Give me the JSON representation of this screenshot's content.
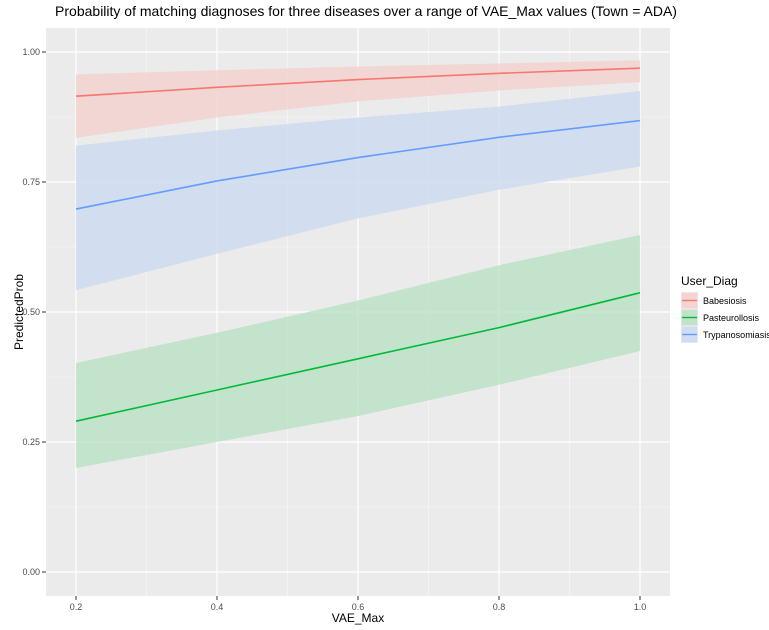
{
  "chart_data": {
    "type": "line",
    "title": "Probability of matching diagnoses for three diseases over a range of VAE_Max values (Town = ADA)",
    "xlabel": "VAE_Max",
    "ylabel": "PredictedProb",
    "xlim": [
      0.2,
      1.0
    ],
    "ylim": [
      0.0,
      1.0
    ],
    "x_ticks": [
      0.2,
      0.4,
      0.6,
      0.8,
      1.0
    ],
    "x_tick_labels": [
      "0.2",
      "0.4",
      "0.6",
      "0.8",
      "1.0"
    ],
    "y_ticks": [
      0.0,
      0.25,
      0.5,
      0.75,
      1.0
    ],
    "y_tick_labels": [
      "0.00",
      "0.25",
      "0.50",
      "0.75",
      "1.00"
    ],
    "grid": true,
    "background_color": "#ebebeb",
    "grid_color": "#ffffff",
    "legend": {
      "title": "User_Diag",
      "placement": "right"
    },
    "x": [
      0.2,
      0.4,
      0.6,
      0.8,
      1.0
    ],
    "series": [
      {
        "name": "Babesiosis",
        "color": "#f8766d",
        "fill": "#f4cfcc",
        "values": [
          0.915,
          0.932,
          0.947,
          0.959,
          0.969
        ],
        "lower": [
          0.835,
          0.874,
          0.905,
          0.926,
          0.942
        ],
        "upper": [
          0.957,
          0.965,
          0.972,
          0.978,
          0.984
        ]
      },
      {
        "name": "Pasteurollosis",
        "color": "#00ba38",
        "fill": "#b8e0c3",
        "values": [
          0.29,
          0.35,
          0.41,
          0.47,
          0.537
        ],
        "lower": [
          0.2,
          0.25,
          0.3,
          0.36,
          0.425
        ],
        "upper": [
          0.402,
          0.46,
          0.522,
          0.59,
          0.648
        ]
      },
      {
        "name": "Trypanosomiasis",
        "color": "#619cff",
        "fill": "#cad8f0",
        "values": [
          0.698,
          0.752,
          0.797,
          0.836,
          0.868
        ],
        "lower": [
          0.542,
          0.612,
          0.68,
          0.735,
          0.78
        ],
        "upper": [
          0.82,
          0.849,
          0.874,
          0.895,
          0.925
        ]
      }
    ]
  }
}
